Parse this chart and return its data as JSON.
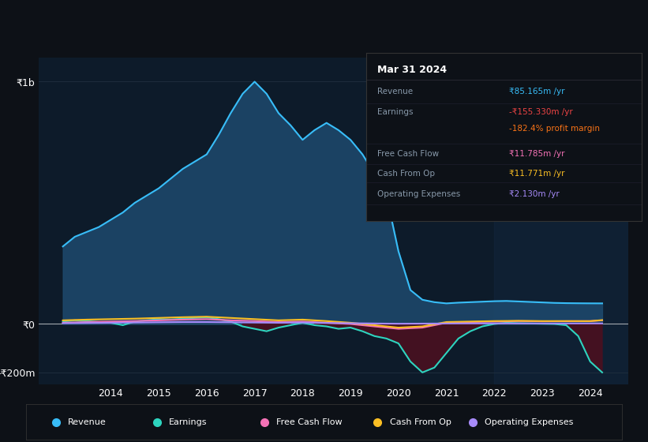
{
  "bg_color": "#0d1117",
  "plot_bg_color": "#0d1b2a",
  "title": "Mar 31 2024",
  "ylim": [
    -250000000,
    1100000000
  ],
  "xlim": [
    2012.5,
    2024.8
  ],
  "yticks": [
    0,
    1000000000
  ],
  "ytick_labels": [
    "₹0",
    "₹1b"
  ],
  "ytick_neg": [
    -200000000
  ],
  "ytick_neg_labels": [
    "-₹200m"
  ],
  "grid_color": "#1e2d3d",
  "year_labels": [
    2014,
    2015,
    2016,
    2017,
    2018,
    2019,
    2020,
    2021,
    2022,
    2023,
    2024
  ],
  "revenue_color": "#38bdf8",
  "revenue_fill": "#1e4a6e",
  "earnings_color": "#2dd4bf",
  "earnings_fill_neg": "#4a1020",
  "fcf_color": "#f472b6",
  "cashfromop_color": "#fbbf24",
  "opex_color": "#a78bfa",
  "revenue_x": [
    2013,
    2013.25,
    2013.5,
    2013.75,
    2014,
    2014.25,
    2014.5,
    2014.75,
    2015,
    2015.25,
    2015.5,
    2015.75,
    2016,
    2016.25,
    2016.5,
    2016.75,
    2017,
    2017.25,
    2017.5,
    2017.75,
    2018,
    2018.25,
    2018.5,
    2018.75,
    2019,
    2019.25,
    2019.5,
    2019.75,
    2020,
    2020.25,
    2020.5,
    2020.75,
    2021,
    2021.25,
    2021.5,
    2021.75,
    2022,
    2022.25,
    2022.5,
    2022.75,
    2023,
    2023.25,
    2023.5,
    2023.75,
    2024,
    2024.25
  ],
  "revenue_y": [
    320000000,
    360000000,
    380000000,
    400000000,
    430000000,
    460000000,
    500000000,
    530000000,
    560000000,
    600000000,
    640000000,
    670000000,
    700000000,
    780000000,
    870000000,
    950000000,
    1000000000,
    950000000,
    870000000,
    820000000,
    760000000,
    800000000,
    830000000,
    800000000,
    760000000,
    700000000,
    620000000,
    530000000,
    300000000,
    140000000,
    100000000,
    90000000,
    85000000,
    88000000,
    90000000,
    92000000,
    94000000,
    95000000,
    93000000,
    91000000,
    89000000,
    87000000,
    86000000,
    85500000,
    85165000,
    85000000
  ],
  "earnings_x": [
    2013,
    2013.25,
    2013.5,
    2013.75,
    2014,
    2014.25,
    2014.5,
    2014.75,
    2015,
    2015.25,
    2015.5,
    2015.75,
    2016,
    2016.25,
    2016.5,
    2016.75,
    2017,
    2017.25,
    2017.5,
    2017.75,
    2018,
    2018.25,
    2018.5,
    2018.75,
    2019,
    2019.25,
    2019.5,
    2019.75,
    2020,
    2020.25,
    2020.5,
    2020.75,
    2021,
    2021.25,
    2021.5,
    2021.75,
    2022,
    2022.25,
    2022.5,
    2022.75,
    2023,
    2023.25,
    2023.5,
    2023.75,
    2024,
    2024.25
  ],
  "earnings_y": [
    10000000,
    15000000,
    12000000,
    8000000,
    5000000,
    -5000000,
    10000000,
    15000000,
    20000000,
    18000000,
    22000000,
    25000000,
    28000000,
    20000000,
    10000000,
    -10000000,
    -20000000,
    -30000000,
    -15000000,
    -5000000,
    5000000,
    -5000000,
    -10000000,
    -20000000,
    -15000000,
    -30000000,
    -50000000,
    -60000000,
    -80000000,
    -155000000,
    -200000000,
    -180000000,
    -120000000,
    -60000000,
    -30000000,
    -10000000,
    0,
    5000000,
    3000000,
    2000000,
    1000000,
    0,
    -5000000,
    -50000000,
    -155330000,
    -200000000
  ],
  "fcf_x": [
    2013,
    2013.5,
    2014,
    2014.5,
    2015,
    2015.5,
    2016,
    2016.5,
    2017,
    2017.5,
    2018,
    2018.5,
    2019,
    2019.5,
    2020,
    2020.5,
    2021,
    2021.5,
    2022,
    2022.5,
    2023,
    2023.5,
    2024,
    2024.25
  ],
  "fcf_y": [
    5000000,
    8000000,
    10000000,
    12000000,
    15000000,
    18000000,
    20000000,
    15000000,
    12000000,
    8000000,
    10000000,
    5000000,
    0,
    -10000000,
    -20000000,
    -15000000,
    5000000,
    8000000,
    10000000,
    12000000,
    11000000,
    11500000,
    11785000,
    15000000
  ],
  "cashop_x": [
    2013,
    2013.5,
    2014,
    2014.5,
    2015,
    2015.5,
    2016,
    2016.5,
    2017,
    2017.5,
    2018,
    2018.5,
    2019,
    2019.5,
    2020,
    2020.5,
    2021,
    2021.5,
    2022,
    2022.5,
    2023,
    2023.5,
    2024,
    2024.25
  ],
  "cashop_y": [
    15000000,
    18000000,
    20000000,
    22000000,
    25000000,
    28000000,
    30000000,
    25000000,
    20000000,
    15000000,
    18000000,
    12000000,
    5000000,
    -5000000,
    -15000000,
    -10000000,
    8000000,
    10000000,
    12000000,
    13000000,
    12000000,
    12000000,
    11771000,
    16000000
  ],
  "opex_x": [
    2013,
    2013.5,
    2014,
    2014.5,
    2015,
    2015.5,
    2016,
    2016.5,
    2017,
    2017.5,
    2018,
    2018.5,
    2019,
    2019.5,
    2020,
    2020.5,
    2021,
    2021.5,
    2022,
    2022.5,
    2023,
    2023.5,
    2024,
    2024.25
  ],
  "opex_y": [
    3000000,
    4000000,
    5000000,
    6000000,
    7000000,
    8000000,
    8000000,
    7000000,
    6000000,
    5000000,
    6000000,
    4000000,
    3000000,
    2000000,
    1000000,
    1500000,
    2000000,
    2200000,
    2300000,
    2200000,
    2100000,
    2100000,
    2130000,
    2200000
  ],
  "info_box_rows": [
    {
      "label": "Revenue",
      "value": "₹85.165m /yr",
      "value_color": "#38bdf8"
    },
    {
      "label": "Earnings",
      "value": "-₹155.330m /yr",
      "value_color": "#ef4444"
    },
    {
      "label": "",
      "value": "-182.4% profit margin",
      "value_color": "#f97316"
    },
    {
      "label": "Free Cash Flow",
      "value": "₹11.785m /yr",
      "value_color": "#f472b6"
    },
    {
      "label": "Cash From Op",
      "value": "₹11.771m /yr",
      "value_color": "#fbbf24"
    },
    {
      "label": "Operating Expenses",
      "value": "₹2.130m /yr",
      "value_color": "#a78bfa"
    }
  ],
  "legend_items": [
    {
      "label": "Revenue",
      "color": "#38bdf8"
    },
    {
      "label": "Earnings",
      "color": "#2dd4bf"
    },
    {
      "label": "Free Cash Flow",
      "color": "#f472b6"
    },
    {
      "label": "Cash From Op",
      "color": "#fbbf24"
    },
    {
      "label": "Operating Expenses",
      "color": "#a78bfa"
    }
  ]
}
